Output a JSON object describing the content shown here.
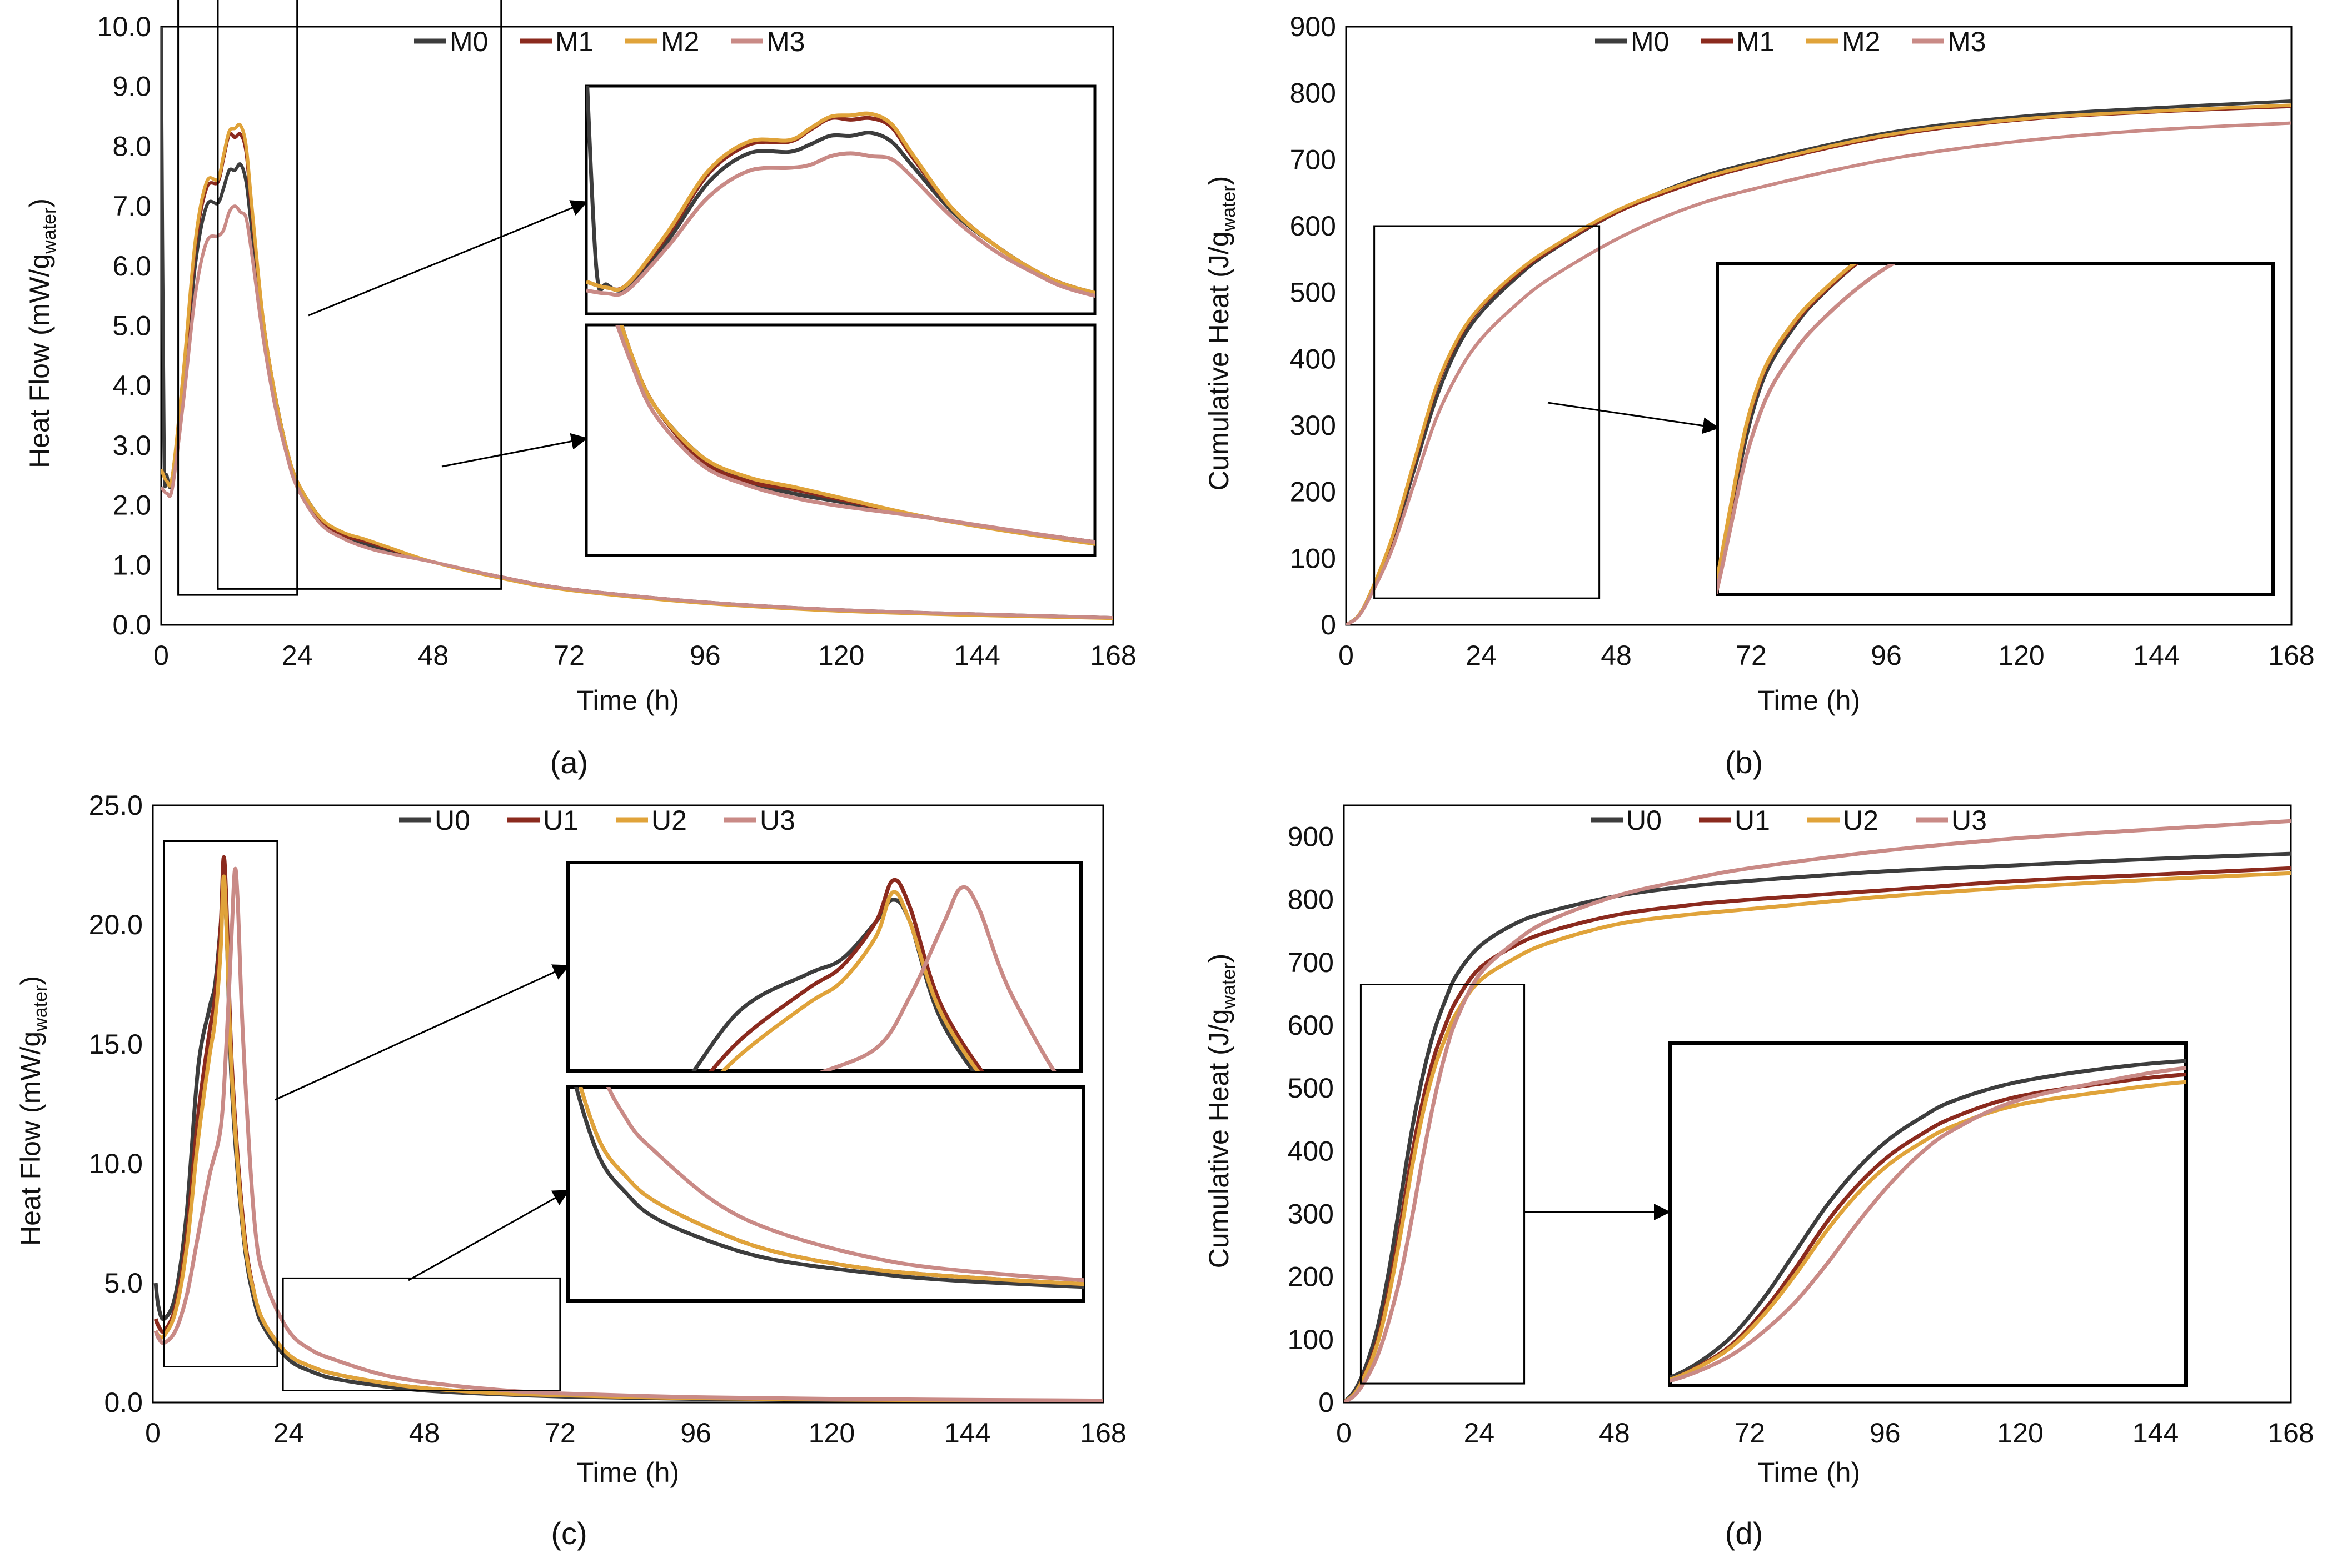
{
  "colors": {
    "c0": "#3d3d3d",
    "c1": "#8b2a1e",
    "c2": "#e0a33a",
    "c3": "#c98a86",
    "frame": "#000000"
  },
  "chart_data": [
    {
      "id": "a",
      "type": "line",
      "caption": "(a)",
      "xlabel": "Time (h)",
      "ylabel": "Heat Flow (mW/g",
      "ylabel_sub": "water",
      "ylabel_tail": ")",
      "xlim": [
        0,
        168
      ],
      "ylim": [
        0,
        10
      ],
      "xticks": [
        "0",
        "24",
        "48",
        "72",
        "96",
        "120",
        "144",
        "168"
      ],
      "yticks": [
        "0.0",
        "1.0",
        "2.0",
        "3.0",
        "4.0",
        "5.0",
        "6.0",
        "7.0",
        "8.0",
        "9.0",
        "10.0"
      ],
      "legend": [
        "M0",
        "M1",
        "M2",
        "M3"
      ],
      "series": [
        {
          "name": "M0",
          "x": [
            0,
            0.5,
            1,
            2,
            4,
            6,
            8,
            10,
            11,
            12,
            13,
            14,
            15,
            16,
            18,
            20,
            22,
            24,
            28,
            32,
            36,
            40,
            48,
            60,
            72,
            96,
            120,
            144,
            168
          ],
          "y": [
            10,
            3.0,
            2.5,
            2.4,
            4.0,
            6.0,
            7.0,
            7.05,
            7.3,
            7.6,
            7.6,
            7.7,
            7.4,
            6.6,
            5.0,
            3.9,
            3.0,
            2.4,
            1.8,
            1.5,
            1.35,
            1.25,
            1.05,
            0.8,
            0.6,
            0.38,
            0.25,
            0.18,
            0.12
          ]
        },
        {
          "name": "M1",
          "x": [
            0,
            1,
            2,
            4,
            6,
            8,
            10,
            11,
            12,
            13,
            14,
            15,
            16,
            18,
            20,
            22,
            24,
            28,
            32,
            36,
            40,
            48,
            60,
            72,
            96,
            120,
            144,
            168
          ],
          "y": [
            2.6,
            2.4,
            2.5,
            4.2,
            6.3,
            7.3,
            7.4,
            7.8,
            8.2,
            8.15,
            8.2,
            7.9,
            6.9,
            5.1,
            3.9,
            3.0,
            2.4,
            1.75,
            1.5,
            1.4,
            1.28,
            1.05,
            0.8,
            0.6,
            0.37,
            0.24,
            0.17,
            0.12
          ]
        },
        {
          "name": "M2",
          "x": [
            0,
            1,
            2,
            4,
            6,
            8,
            10,
            11,
            12,
            13,
            14,
            15,
            16,
            18,
            20,
            22,
            24,
            28,
            32,
            36,
            40,
            48,
            60,
            72,
            96,
            120,
            144,
            168
          ],
          "y": [
            2.6,
            2.4,
            2.5,
            4.3,
            6.4,
            7.4,
            7.45,
            7.85,
            8.25,
            8.3,
            8.35,
            8.0,
            7.0,
            5.1,
            3.9,
            3.0,
            2.4,
            1.8,
            1.55,
            1.43,
            1.3,
            1.05,
            0.78,
            0.58,
            0.36,
            0.23,
            0.16,
            0.11
          ]
        },
        {
          "name": "M3",
          "x": [
            0,
            1,
            2,
            4,
            6,
            8,
            10,
            11,
            12,
            13,
            14,
            15,
            16,
            18,
            20,
            22,
            24,
            28,
            32,
            36,
            40,
            48,
            60,
            72,
            96,
            120,
            144,
            168
          ],
          "y": [
            2.3,
            2.2,
            2.3,
            3.8,
            5.5,
            6.4,
            6.5,
            6.6,
            6.9,
            7.0,
            6.9,
            6.8,
            6.2,
            4.8,
            3.7,
            2.9,
            2.3,
            1.7,
            1.45,
            1.3,
            1.2,
            1.05,
            0.8,
            0.6,
            0.38,
            0.25,
            0.18,
            0.12
          ]
        }
      ]
    },
    {
      "id": "b",
      "type": "line",
      "caption": "(b)",
      "xlabel": "Time (h)",
      "ylabel": "Cumulative Heat (J/g",
      "ylabel_sub": "water",
      "ylabel_tail": ")",
      "xlim": [
        0,
        168
      ],
      "ylim": [
        0,
        900
      ],
      "xticks": [
        "0",
        "24",
        "48",
        "72",
        "96",
        "120",
        "144",
        "168"
      ],
      "yticks": [
        "0",
        "100",
        "200",
        "300",
        "400",
        "500",
        "600",
        "700",
        "800",
        "900"
      ],
      "legend": [
        "M0",
        "M1",
        "M2",
        "M3"
      ],
      "series": [
        {
          "name": "M0",
          "x": [
            0,
            2,
            4,
            8,
            12,
            16,
            20,
            24,
            30,
            36,
            48,
            60,
            72,
            96,
            120,
            144,
            168
          ],
          "y": [
            0,
            12,
            40,
            120,
            230,
            340,
            420,
            470,
            520,
            560,
            620,
            665,
            695,
            740,
            765,
            778,
            788
          ]
        },
        {
          "name": "M1",
          "x": [
            0,
            2,
            4,
            8,
            12,
            16,
            20,
            24,
            30,
            36,
            48,
            60,
            72,
            96,
            120,
            144,
            168
          ],
          "y": [
            0,
            12,
            42,
            125,
            240,
            355,
            430,
            478,
            525,
            562,
            620,
            660,
            690,
            735,
            760,
            772,
            780
          ]
        },
        {
          "name": "M2",
          "x": [
            0,
            2,
            4,
            8,
            12,
            16,
            20,
            24,
            30,
            36,
            48,
            60,
            72,
            96,
            120,
            144,
            168
          ],
          "y": [
            0,
            12,
            42,
            127,
            243,
            358,
            433,
            480,
            528,
            565,
            623,
            663,
            692,
            737,
            761,
            773,
            782
          ]
        },
        {
          "name": "M3",
          "x": [
            0,
            2,
            4,
            8,
            12,
            16,
            20,
            24,
            30,
            36,
            48,
            60,
            72,
            96,
            120,
            144,
            168
          ],
          "y": [
            0,
            11,
            38,
            110,
            210,
            310,
            380,
            430,
            480,
            520,
            580,
            625,
            655,
            700,
            728,
            745,
            755
          ]
        }
      ]
    },
    {
      "id": "c",
      "type": "line",
      "caption": "(c)",
      "xlabel": "Time (h)",
      "ylabel": "Heat Flow (mW/g",
      "ylabel_sub": "water",
      "ylabel_tail": ")",
      "xlim": [
        0,
        168
      ],
      "ylim": [
        0,
        25
      ],
      "xticks": [
        "0",
        "24",
        "48",
        "72",
        "96",
        "120",
        "144",
        "168"
      ],
      "yticks": [
        "0.0",
        "5.0",
        "10.0",
        "15.0",
        "20.0",
        "25.0"
      ],
      "legend": [
        "U0",
        "U1",
        "U2",
        "U3"
      ],
      "series": [
        {
          "name": "U0",
          "x": [
            0.5,
            1,
            2,
            4,
            6,
            8,
            10,
            11,
            12,
            12.5,
            13,
            14,
            16,
            18,
            20,
            24,
            28,
            32,
            40,
            48,
            60,
            72,
            96,
            120,
            144,
            168
          ],
          "y": [
            5.0,
            4.0,
            3.5,
            4.5,
            8,
            14,
            16.5,
            17.5,
            20.0,
            21.5,
            20,
            13,
            7,
            4.2,
            3.0,
            1.8,
            1.3,
            1.0,
            0.7,
            0.5,
            0.35,
            0.25,
            0.15,
            0.1,
            0.08,
            0.06
          ]
        },
        {
          "name": "U1",
          "x": [
            0.5,
            1,
            2,
            4,
            6,
            8,
            10,
            11,
            12,
            12.5,
            13,
            14,
            16,
            18,
            20,
            24,
            28,
            32,
            40,
            48,
            60,
            72,
            96,
            120,
            144,
            168
          ],
          "y": [
            3.5,
            3.2,
            3.0,
            4.0,
            7,
            12,
            15.5,
            17,
            20.0,
            22.8,
            21,
            14,
            7.5,
            4.5,
            3.2,
            2.0,
            1.5,
            1.2,
            0.85,
            0.6,
            0.4,
            0.3,
            0.18,
            0.12,
            0.09,
            0.07
          ]
        },
        {
          "name": "U2",
          "x": [
            0.5,
            1,
            2,
            4,
            6,
            8,
            10,
            11,
            12,
            12.5,
            13,
            14,
            16,
            18,
            20,
            24,
            28,
            32,
            40,
            48,
            60,
            72,
            96,
            120,
            144,
            168
          ],
          "y": [
            3.0,
            2.8,
            2.8,
            3.8,
            6.5,
            11,
            14.5,
            16,
            19,
            22.0,
            20,
            13.5,
            7.2,
            4.5,
            3.2,
            2.0,
            1.5,
            1.2,
            0.85,
            0.6,
            0.4,
            0.3,
            0.18,
            0.12,
            0.09,
            0.07
          ]
        },
        {
          "name": "U3",
          "x": [
            0.5,
            1,
            2,
            4,
            6,
            8,
            10,
            12,
            13,
            14,
            14.5,
            15,
            16,
            18,
            20,
            24,
            28,
            32,
            40,
            48,
            60,
            72,
            96,
            120,
            144,
            168
          ],
          "y": [
            3.0,
            2.7,
            2.5,
            3.0,
            4.5,
            7,
            9.5,
            11.5,
            15,
            20,
            22.3,
            21,
            15,
            7.5,
            5.0,
            3.0,
            2.2,
            1.8,
            1.2,
            0.85,
            0.55,
            0.38,
            0.22,
            0.15,
            0.11,
            0.08
          ]
        }
      ]
    },
    {
      "id": "d",
      "type": "line",
      "caption": "(d)",
      "xlabel": "Time (h)",
      "ylabel": "Cumulative Heat (J/g",
      "ylabel_sub": "water",
      "ylabel_tail": ")",
      "xlim": [
        0,
        168
      ],
      "ylim": [
        0,
        950
      ],
      "xticks": [
        "0",
        "24",
        "48",
        "72",
        "96",
        "120",
        "144",
        "168"
      ],
      "yticks": [
        "0",
        "100",
        "200",
        "300",
        "400",
        "500",
        "600",
        "700",
        "800",
        "900"
      ],
      "legend": [
        "U0",
        "U1",
        "U2",
        "U3"
      ],
      "series": [
        {
          "name": "U0",
          "x": [
            0,
            2,
            4,
            6,
            8,
            10,
            12,
            14,
            16,
            18,
            20,
            24,
            30,
            36,
            48,
            60,
            72,
            96,
            120,
            144,
            168
          ],
          "y": [
            0,
            20,
            60,
            120,
            210,
            320,
            430,
            520,
            590,
            640,
            680,
            725,
            760,
            780,
            805,
            820,
            830,
            845,
            855,
            865,
            873
          ]
        },
        {
          "name": "U1",
          "x": [
            0,
            2,
            4,
            6,
            8,
            10,
            12,
            14,
            16,
            18,
            20,
            24,
            30,
            36,
            48,
            60,
            72,
            96,
            120,
            144,
            168
          ],
          "y": [
            0,
            15,
            50,
            100,
            180,
            280,
            390,
            480,
            550,
            600,
            640,
            690,
            725,
            748,
            775,
            790,
            800,
            815,
            830,
            840,
            850
          ]
        },
        {
          "name": "U2",
          "x": [
            0,
            2,
            4,
            6,
            8,
            10,
            12,
            14,
            16,
            18,
            20,
            24,
            30,
            36,
            48,
            60,
            72,
            96,
            120,
            144,
            168
          ],
          "y": [
            0,
            15,
            48,
            95,
            170,
            265,
            370,
            460,
            530,
            580,
            620,
            670,
            705,
            730,
            760,
            775,
            785,
            805,
            820,
            832,
            842
          ]
        },
        {
          "name": "U3",
          "x": [
            0,
            2,
            4,
            6,
            8,
            10,
            12,
            14,
            16,
            18,
            20,
            24,
            30,
            36,
            48,
            60,
            72,
            96,
            120,
            144,
            168
          ],
          "y": [
            0,
            12,
            38,
            75,
            130,
            200,
            290,
            390,
            480,
            555,
            610,
            680,
            730,
            765,
            805,
            830,
            850,
            878,
            898,
            912,
            925
          ]
        }
      ]
    }
  ]
}
